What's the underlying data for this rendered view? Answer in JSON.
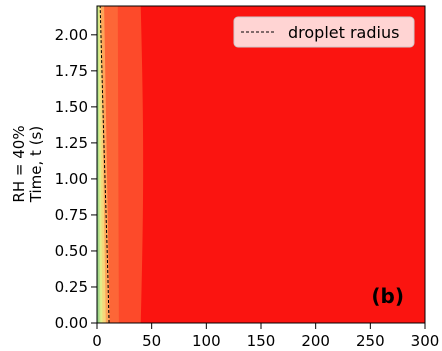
{
  "chart_data": {
    "type": "heatmap",
    "xlim": [
      0,
      300
    ],
    "ylim": [
      0,
      2.2
    ],
    "x_ticks": [
      0,
      50,
      100,
      150,
      200,
      250,
      300
    ],
    "x_tick_labels": [
      "0",
      "50",
      "100",
      "150",
      "200",
      "250",
      "300"
    ],
    "y_ticks": [
      0.0,
      0.25,
      0.5,
      0.75,
      1.0,
      1.25,
      1.5,
      1.75,
      2.0
    ],
    "y_tick_labels": [
      "0.00",
      "0.25",
      "0.50",
      "0.75",
      "1.00",
      "1.25",
      "1.50",
      "1.75",
      "2.00"
    ],
    "ylabel_lines": [
      "RH = 40%",
      "Time, t (s)"
    ],
    "xlabel": "",
    "panel_label": "(b)",
    "legend": {
      "label": "droplet radius",
      "placement": "top-right"
    },
    "colors": {
      "background_level": "#fb1410",
      "level_2": "#fd4a2a",
      "level_3": "#fd6637",
      "level_4": "#fda55a",
      "level_5": "#f6d77c",
      "level_6": "#e1ee8a",
      "level_7": "#b8e08a",
      "level_8": "#8fce86"
    },
    "contour_bands": [
      {
        "color_key": "level_2",
        "x_at_t0": 40.0,
        "x_at_tmax": 40.0
      },
      {
        "color_key": "level_3",
        "x_at_t0": 20.0,
        "x_at_tmax": 19.0
      },
      {
        "color_key": "level_4",
        "x_at_t0": 11.5,
        "x_at_tmax": 6.5
      },
      {
        "color_key": "level_5",
        "x_at_t0": 8.0,
        "x_at_tmax": 3.5
      },
      {
        "color_key": "level_6",
        "x_at_t0": 5.0,
        "x_at_tmax": 2.2
      },
      {
        "color_key": "level_7",
        "x_at_t0": 3.0,
        "x_at_tmax": 1.2
      },
      {
        "color_key": "level_8",
        "x_at_t0": 1.5,
        "x_at_tmax": 0.5
      }
    ],
    "droplet_radius_series": {
      "name": "droplet radius",
      "t": [
        0.0,
        0.25,
        0.5,
        0.75,
        1.0,
        1.25,
        1.5,
        1.75,
        2.0,
        2.2
      ],
      "r": [
        11.0,
        10.2,
        9.3,
        8.3,
        7.3,
        6.3,
        5.4,
        4.5,
        3.6,
        2.9
      ]
    }
  }
}
